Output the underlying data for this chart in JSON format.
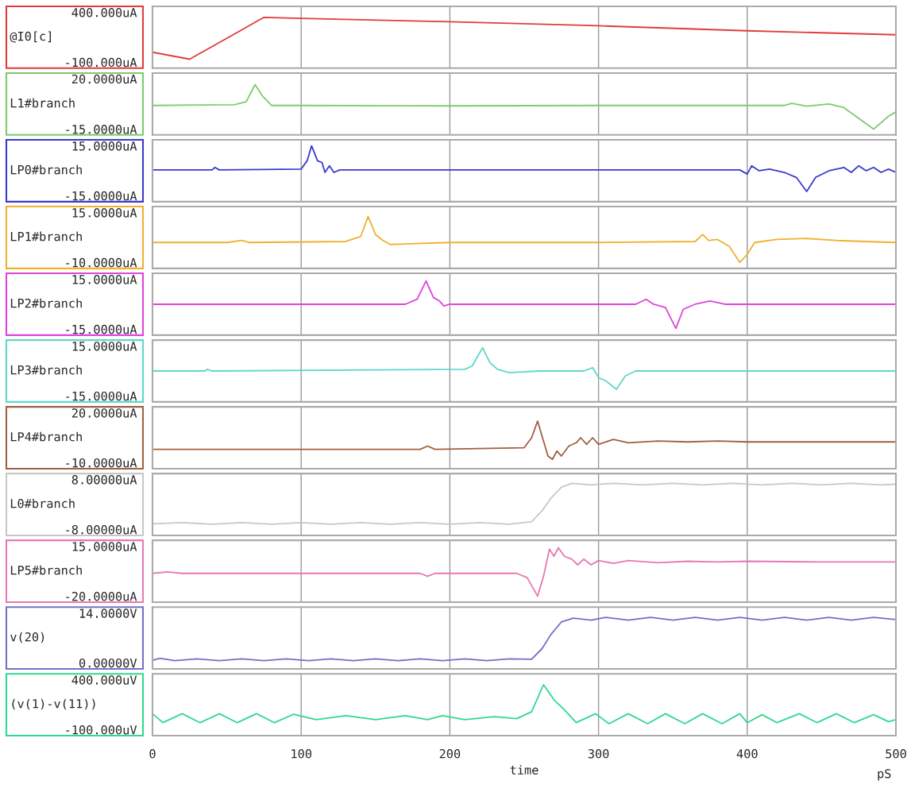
{
  "chart_data": [
    {
      "type": "line",
      "ylabel": "@I0[c]",
      "ylim": [
        -160,
        460
      ],
      "yticks": [
        {
          "value": 400,
          "label": "400.000uA"
        },
        {
          "value": -100,
          "label": "-100.000uA"
        }
      ],
      "xlim": [
        0,
        500
      ],
      "xticks": [
        0,
        100,
        200,
        300,
        400,
        500
      ],
      "tick_labels": "y",
      "grid": "x",
      "series": [
        {
          "color": "#e03c3c",
          "x": [
            0,
            25,
            75,
            100,
            200,
            300,
            400,
            500
          ],
          "values": [
            0,
            -70,
            350,
            340,
            305,
            265,
            215,
            175
          ]
        }
      ]
    },
    {
      "type": "line",
      "ylabel": "L1#branch",
      "ylim": [
        -19,
        24
      ],
      "yticks": [
        {
          "value": 20,
          "label": "20.0000uA"
        },
        {
          "value": -15,
          "label": "-15.0000uA"
        }
      ],
      "xlim": [
        0,
        500
      ],
      "xticks": [
        0,
        100,
        200,
        300,
        400,
        500
      ],
      "tick_labels": "y",
      "grid": "x",
      "series": [
        {
          "color": "#7ccc6c",
          "x": [
            0,
            55,
            63,
            69,
            74,
            80,
            100,
            200,
            300,
            400,
            425,
            430,
            440,
            455,
            465,
            485,
            495,
            500
          ],
          "values": [
            1.5,
            2,
            4,
            16,
            8,
            1.5,
            1.5,
            1.2,
            1.5,
            1.5,
            1.5,
            3,
            1,
            2.5,
            0,
            -15,
            -6,
            -3
          ]
        }
      ]
    },
    {
      "type": "line",
      "ylabel": "LP0#branch",
      "ylim": [
        -18.6,
        18.6
      ],
      "yticks": [
        {
          "value": 15,
          "label": "15.0000uA"
        },
        {
          "value": -15,
          "label": "-15.0000uA"
        }
      ],
      "xlim": [
        0,
        500
      ],
      "xticks": [
        0,
        100,
        200,
        300,
        400,
        500
      ],
      "tick_labels": "y",
      "grid": "x",
      "series": [
        {
          "color": "#3a3acc",
          "x": [
            0,
            40,
            42,
            45,
            100,
            104,
            107,
            111,
            114,
            116,
            119,
            122,
            126,
            200,
            300,
            395,
            400,
            403,
            408,
            415,
            425,
            433,
            440,
            446,
            455,
            465,
            470,
            475,
            480,
            485,
            490,
            495,
            500
          ],
          "values": [
            0.5,
            0.5,
            2,
            0.5,
            1,
            6,
            15,
            6,
            5,
            -1,
            3,
            -1,
            0.5,
            0.5,
            0.5,
            0.5,
            -2,
            3,
            0,
            1,
            -1,
            -4,
            -12.5,
            -4,
            0,
            2,
            -1,
            3,
            0,
            2,
            -1,
            1,
            -1
          ]
        }
      ]
    },
    {
      "type": "line",
      "ylabel": "LP1#branch",
      "ylim": [
        -13,
        18
      ],
      "yticks": [
        {
          "value": 15,
          "label": "15.0000uA"
        },
        {
          "value": -10,
          "label": "-10.0000uA"
        }
      ],
      "xlim": [
        0,
        500
      ],
      "xticks": [
        0,
        100,
        200,
        300,
        400,
        500
      ],
      "tick_labels": "y",
      "grid": "x",
      "series": [
        {
          "color": "#f0b030",
          "x": [
            0,
            50,
            60,
            65,
            130,
            140,
            145,
            150,
            155,
            160,
            200,
            300,
            365,
            370,
            374,
            380,
            388,
            395,
            400,
            405,
            420,
            440,
            460,
            500
          ],
          "values": [
            0,
            0,
            1,
            0,
            0.5,
            3,
            13,
            4,
            1,
            -1,
            0,
            0,
            0.5,
            4,
            1,
            1.5,
            -2,
            -10,
            -6,
            0,
            1.5,
            2,
            1,
            0
          ]
        }
      ]
    },
    {
      "type": "line",
      "ylabel": "LP2#branch",
      "ylim": [
        -18.6,
        18.6
      ],
      "yticks": [
        {
          "value": 15,
          "label": "15.0000uA"
        },
        {
          "value": -15,
          "label": "-15.0000uA"
        }
      ],
      "xlim": [
        0,
        500
      ],
      "xticks": [
        0,
        100,
        200,
        300,
        400,
        500
      ],
      "tick_labels": "y",
      "grid": "x",
      "series": [
        {
          "color": "#dd44dd",
          "x": [
            0,
            170,
            178,
            184,
            189,
            193,
            196,
            200,
            300,
            325,
            332,
            337,
            345,
            352,
            357,
            365,
            375,
            385,
            400,
            500
          ],
          "values": [
            0,
            0,
            3,
            14,
            4,
            2,
            -1,
            0,
            0,
            0,
            3,
            0,
            -2,
            -14.5,
            -3,
            0,
            2,
            0,
            0,
            0
          ]
        }
      ]
    },
    {
      "type": "line",
      "ylabel": "LP3#branch",
      "ylim": [
        -18.6,
        18.6
      ],
      "yticks": [
        {
          "value": 15,
          "label": "15.0000uA"
        },
        {
          "value": -15,
          "label": "-15.0000uA"
        }
      ],
      "xlim": [
        0,
        500
      ],
      "xticks": [
        0,
        100,
        200,
        300,
        400,
        500
      ],
      "tick_labels": "y",
      "grid": "x",
      "series": [
        {
          "color": "#5fd8c8",
          "x": [
            0,
            35,
            37,
            40,
            210,
            215,
            222,
            227,
            232,
            240,
            260,
            290,
            296,
            300,
            305,
            312,
            318,
            325,
            360,
            400,
            500
          ],
          "values": [
            0,
            0,
            1,
            0,
            1,
            3,
            14,
            5,
            1,
            -1,
            0,
            0,
            2,
            -4,
            -6,
            -11,
            -3,
            0,
            0,
            0,
            0
          ]
        }
      ]
    },
    {
      "type": "line",
      "ylabel": "LP4#branch",
      "ylim": [
        -13.6,
        23.6
      ],
      "yticks": [
        {
          "value": 20,
          "label": "20.0000uA"
        },
        {
          "value": -10,
          "label": "-10.0000uA"
        }
      ],
      "xlim": [
        0,
        500
      ],
      "xticks": [
        0,
        100,
        200,
        300,
        400,
        500
      ],
      "tick_labels": "y",
      "grid": "x",
      "series": [
        {
          "color": "#a06040",
          "x": [
            0,
            180,
            185,
            190,
            250,
            255,
            259,
            263,
            266,
            269,
            272,
            275,
            280,
            285,
            288,
            292,
            296,
            300,
            310,
            320,
            340,
            360,
            380,
            400,
            450,
            500
          ],
          "values": [
            -2,
            -2,
            0,
            -2,
            -1,
            5,
            15,
            3,
            -6,
            -8,
            -3,
            -6,
            0,
            2,
            5,
            1,
            5,
            1,
            4,
            2,
            3,
            2.5,
            3,
            2.5,
            2.5,
            2.5
          ]
        }
      ]
    },
    {
      "type": "line",
      "ylabel": "L0#branch",
      "ylim": [
        -9.9,
        9.9
      ],
      "yticks": [
        {
          "value": 8,
          "label": "8.00000uA"
        },
        {
          "value": -8,
          "label": "-8.00000uA"
        }
      ],
      "xlim": [
        0,
        500
      ],
      "xticks": [
        0,
        100,
        200,
        300,
        400,
        500
      ],
      "tick_labels": "y",
      "grid": "x",
      "series": [
        {
          "color": "#c8c8c8",
          "x": [
            0,
            20,
            40,
            60,
            80,
            100,
            120,
            140,
            160,
            180,
            200,
            220,
            240,
            255,
            262,
            268,
            275,
            282,
            295,
            310,
            330,
            350,
            370,
            390,
            410,
            430,
            450,
            470,
            490,
            500
          ],
          "values": [
            -6.2,
            -5.8,
            -6.3,
            -5.8,
            -6.3,
            -5.8,
            -6.3,
            -5.8,
            -6.3,
            -5.8,
            -6.3,
            -5.8,
            -6.3,
            -5.5,
            -2,
            2,
            5.5,
            6.8,
            6.3,
            6.8,
            6.3,
            6.8,
            6.3,
            6.8,
            6.3,
            6.8,
            6.3,
            6.8,
            6.3,
            6.5
          ]
        }
      ]
    },
    {
      "type": "line",
      "ylabel": "LP5#branch",
      "ylim": [
        -24.2,
        19.2
      ],
      "yticks": [
        {
          "value": 15,
          "label": "15.0000uA"
        },
        {
          "value": -20,
          "label": "-20.0000uA"
        }
      ],
      "xlim": [
        0,
        500
      ],
      "xticks": [
        0,
        100,
        200,
        300,
        400,
        500
      ],
      "tick_labels": "y",
      "grid": "x",
      "series": [
        {
          "color": "#e878b0",
          "x": [
            0,
            10,
            20,
            180,
            185,
            190,
            245,
            252,
            259,
            263,
            267,
            270,
            273,
            277,
            282,
            286,
            290,
            295,
            300,
            310,
            320,
            340,
            360,
            380,
            400,
            450,
            500
          ],
          "values": [
            -4,
            -3,
            -4,
            -4,
            -6,
            -4,
            -4,
            -7,
            -20,
            -6,
            13,
            8,
            14,
            8,
            6,
            2,
            6,
            2,
            5,
            3,
            5,
            3.5,
            4.5,
            4,
            4.5,
            4,
            4
          ]
        }
      ]
    },
    {
      "type": "line",
      "ylabel": "v(20)",
      "ylim": [
        -1.7,
        15.7
      ],
      "yticks": [
        {
          "value": 14,
          "label": "14.0000V"
        },
        {
          "value": 0,
          "label": "0.00000V"
        }
      ],
      "xlim": [
        0,
        500
      ],
      "xticks": [
        0,
        100,
        200,
        300,
        400,
        500
      ],
      "tick_labels": "y",
      "grid": "x",
      "series": [
        {
          "color": "#7070c8",
          "x": [
            0,
            5,
            15,
            30,
            45,
            60,
            75,
            90,
            105,
            120,
            135,
            150,
            165,
            180,
            195,
            210,
            225,
            240,
            255,
            262,
            268,
            275,
            283,
            295,
            305,
            320,
            335,
            350,
            365,
            380,
            395,
            410,
            425,
            440,
            455,
            470,
            485,
            500
          ],
          "values": [
            0.7,
            1.3,
            0.6,
            1.1,
            0.6,
            1.1,
            0.6,
            1.1,
            0.6,
            1.1,
            0.6,
            1.1,
            0.6,
            1.1,
            0.6,
            1.1,
            0.6,
            1.1,
            1,
            4,
            8,
            11.5,
            12.6,
            12,
            12.8,
            12,
            12.8,
            12,
            12.8,
            12,
            12.8,
            12,
            12.8,
            12,
            12.8,
            12,
            12.8,
            12.2
          ]
        }
      ]
    },
    {
      "type": "line",
      "ylabel": "(v(1)-v(11))",
      "xlabel": "time",
      "annotations": [
        "pS"
      ],
      "ylim": [
        -160,
        460
      ],
      "yticks": [
        {
          "value": 400,
          "label": "400.000uV"
        },
        {
          "value": -100,
          "label": "-100.000uV"
        }
      ],
      "xlim": [
        0,
        500
      ],
      "xticks": [
        0,
        100,
        200,
        300,
        400,
        500
      ],
      "grid": "x",
      "series": [
        {
          "color": "#30d890",
          "x": [
            0,
            7,
            20,
            32,
            45,
            57,
            70,
            82,
            95,
            110,
            130,
            150,
            170,
            185,
            195,
            210,
            230,
            245,
            255,
            263,
            270,
            277,
            285,
            298,
            307,
            320,
            333,
            345,
            358,
            370,
            383,
            395,
            400,
            410,
            420,
            435,
            447,
            460,
            472,
            485,
            495,
            500
          ],
          "values": [
            60,
            -30,
            60,
            -30,
            60,
            -30,
            60,
            -30,
            55,
            0,
            40,
            0,
            40,
            0,
            40,
            0,
            30,
            10,
            80,
            350,
            200,
            100,
            -30,
            60,
            -40,
            60,
            -40,
            60,
            -40,
            60,
            -40,
            60,
            -30,
            50,
            -30,
            60,
            -30,
            60,
            -30,
            50,
            -20,
            0
          ]
        }
      ]
    }
  ]
}
